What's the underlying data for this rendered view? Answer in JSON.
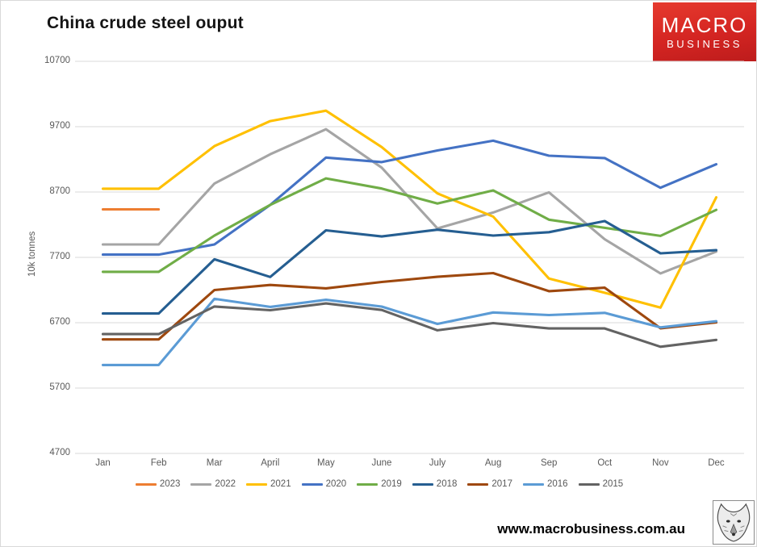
{
  "header": {
    "title": "China crude steel ouput"
  },
  "logo": {
    "line1": "MACRO",
    "line2": "BUSINESS",
    "bg_color": "#d42522",
    "text_color": "#ffffff"
  },
  "footer": {
    "url": "www.macrobusiness.com.au",
    "wolf_icon": "wolf-head-sketch"
  },
  "chart_data": {
    "type": "line",
    "title": "China crude steel ouput",
    "xlabel": "",
    "ylabel": "10k tonnes",
    "ylim": [
      4700,
      10700
    ],
    "yticks": [
      10700,
      9700,
      8700,
      7700,
      6700,
      5700,
      4700
    ],
    "grid": true,
    "gridline_color": "#d9d9d9",
    "axis_text_color": "#595959",
    "legend_position": "bottom",
    "categories": [
      "Jan",
      "Feb",
      "Mar",
      "April",
      "May",
      "June",
      "July",
      "Aug",
      "Sep",
      "Oct",
      "Nov",
      "Dec"
    ],
    "series": [
      {
        "name": "2023",
        "color": "#ED7D31",
        "values": [
          8435,
          8435,
          null,
          null,
          null,
          null,
          null,
          null,
          null,
          null,
          null,
          null
        ]
      },
      {
        "name": "2022",
        "color": "#A5A5A5",
        "values": [
          7898,
          7898,
          8830,
          9278,
          9661,
          9073,
          8143,
          8387,
          8695,
          7976,
          7454,
          7789
        ]
      },
      {
        "name": "2021",
        "color": "#FFC000",
        "values": [
          8750,
          8750,
          9402,
          9785,
          9945,
          9388,
          8679,
          8324,
          7375,
          7158,
          6931,
          8619
        ]
      },
      {
        "name": "2020",
        "color": "#4472C4",
        "values": [
          7742,
          7742,
          7898,
          8503,
          9227,
          9158,
          9336,
          9485,
          9256,
          9220,
          8766,
          9125
        ]
      },
      {
        "name": "2019",
        "color": "#70AD47",
        "values": [
          7479,
          7479,
          8033,
          8503,
          8909,
          8753,
          8523,
          8725,
          8277,
          8152,
          8029,
          8427
        ]
      },
      {
        "name": "2018",
        "color": "#255E91",
        "values": [
          6841,
          6841,
          7670,
          7400,
          8113,
          8020,
          8124,
          8033,
          8085,
          8255,
          7762,
          7810
        ]
      },
      {
        "name": "2017",
        "color": "#9E480E",
        "values": [
          6445,
          6445,
          7200,
          7278,
          7226,
          7323,
          7402,
          7459,
          7183,
          7236,
          6615,
          6705
        ]
      },
      {
        "name": "2016",
        "color": "#5B9BD5",
        "values": [
          6053,
          6053,
          7065,
          6942,
          7050,
          6947,
          6681,
          6857,
          6817,
          6851,
          6629,
          6722
        ]
      },
      {
        "name": "2015",
        "color": "#636363",
        "values": [
          6526,
          6526,
          6948,
          6891,
          6995,
          6895,
          6584,
          6694,
          6612,
          6612,
          6332,
          6437
        ]
      }
    ]
  }
}
